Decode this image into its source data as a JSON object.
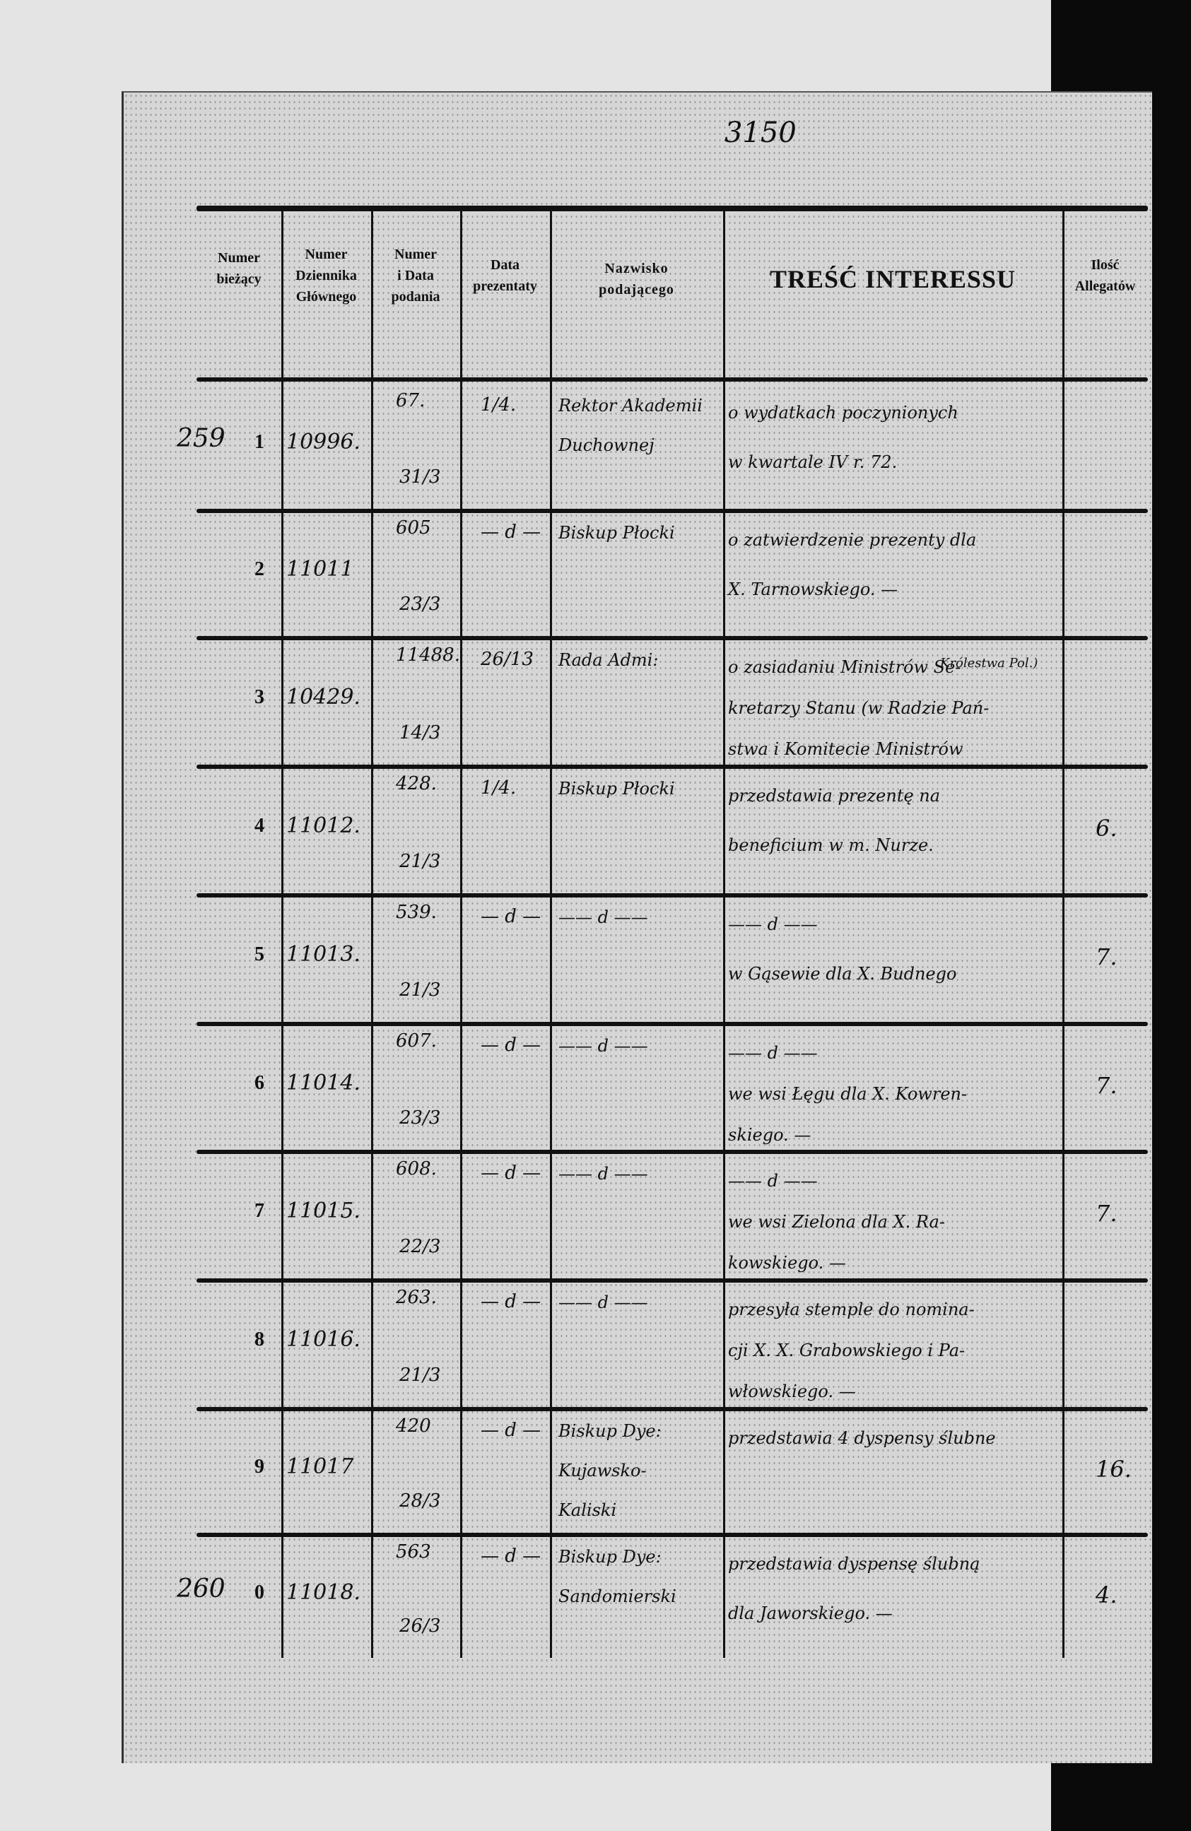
{
  "archive_mark": "3150",
  "header": {
    "col1": [
      "Numer",
      "bieżący"
    ],
    "col2": [
      "Numer",
      "Dziennika",
      "Głównego"
    ],
    "col3": [
      "Numer",
      "i Data",
      "podania"
    ],
    "col4": [
      "Data",
      "prezentaty"
    ],
    "col5": [
      "Nazwisko",
      "podającego"
    ],
    "title": "TREŚĆ INTERESSU",
    "col7": [
      "Ilość",
      "Allegatów"
    ]
  },
  "rows": [
    {
      "margin": "259",
      "no": "1",
      "journal": "10996.",
      "filing_no": "67.",
      "filing_date": "31/3",
      "presented": "1/4.",
      "sender": [
        "Rektor Akademii",
        "Duchownej"
      ],
      "content": [
        "o wydatkach poczynionych",
        "w kwartale IV r. 72."
      ],
      "attachments": ""
    },
    {
      "margin": "",
      "no": "2",
      "journal": "11011",
      "filing_no": "605",
      "filing_date": "23/3",
      "presented": "— d —",
      "sender": [
        "Biskup Płocki"
      ],
      "content": [
        "o zatwierdzenie prezenty dla",
        "X. Tarnowskiego. —"
      ],
      "attachments": ""
    },
    {
      "margin": "",
      "no": "3",
      "journal": "10429.",
      "filing_no": "11488.",
      "filing_date": "14/3",
      "presented": "26/13",
      "sender": [
        "Rada Admi:"
      ],
      "content": [
        "o zasiadaniu Ministrów Se-",
        "kretarzy Stanu (w Radzie Pań-",
        "stwa i Komitecie Ministrów"
      ],
      "note": "Królestwa Pol.)",
      "attachments": ""
    },
    {
      "margin": "",
      "no": "4",
      "journal": "11012.",
      "filing_no": "428.",
      "filing_date": "21/3",
      "presented": "1/4.",
      "sender": [
        "Biskup Płocki"
      ],
      "content": [
        "przedstawia prezentę na",
        "beneficium w m. Nurze."
      ],
      "attachments": "6."
    },
    {
      "margin": "",
      "no": "5",
      "journal": "11013.",
      "filing_no": "539.",
      "filing_date": "21/3",
      "presented": "— d —",
      "sender": [
        "—— d ——"
      ],
      "content": [
        "—— d ——",
        "w Gąsewie dla X. Budnego"
      ],
      "attachments": "7."
    },
    {
      "margin": "",
      "no": "6",
      "journal": "11014.",
      "filing_no": "607.",
      "filing_date": "23/3",
      "presented": "— d —",
      "sender": [
        "—— d ——"
      ],
      "content": [
        "—— d ——",
        "we wsi Łęgu dla X. Kowren-",
        "skiego. —"
      ],
      "attachments": "7."
    },
    {
      "margin": "",
      "no": "7",
      "journal": "11015.",
      "filing_no": "608.",
      "filing_date": "22/3",
      "presented": "— d —",
      "sender": [
        "—— d ——"
      ],
      "content": [
        "—— d ——",
        "we wsi Zielona dla X. Ra-",
        "kowskiego. —"
      ],
      "attachments": "7."
    },
    {
      "margin": "",
      "no": "8",
      "journal": "11016.",
      "filing_no": "263.",
      "filing_date": "21/3",
      "presented": "— d —",
      "sender": [
        "—— d ——"
      ],
      "content": [
        "przesyła stemple do nomina-",
        "cji X. X. Grabowskiego i Pa-",
        "włowskiego. —"
      ],
      "attachments": ""
    },
    {
      "margin": "",
      "no": "9",
      "journal": "11017",
      "filing_no": "420",
      "filing_date": "28/3",
      "presented": "— d —",
      "sender": [
        "Biskup Dye:",
        "Kujawsko-",
        "Kaliski"
      ],
      "content": [
        "przedstawia 4 dyspensy ślubne"
      ],
      "attachments": "16."
    },
    {
      "margin": "260",
      "no": "0",
      "journal": "11018.",
      "filing_no": "563",
      "filing_date": "26/3",
      "presented": "— d —",
      "sender": [
        "Biskup Dye:",
        "Sandomierski"
      ],
      "content": [
        "przedstawia dyspensę ślubną",
        "dla Jaworskiego. —"
      ],
      "attachments": "4."
    }
  ]
}
